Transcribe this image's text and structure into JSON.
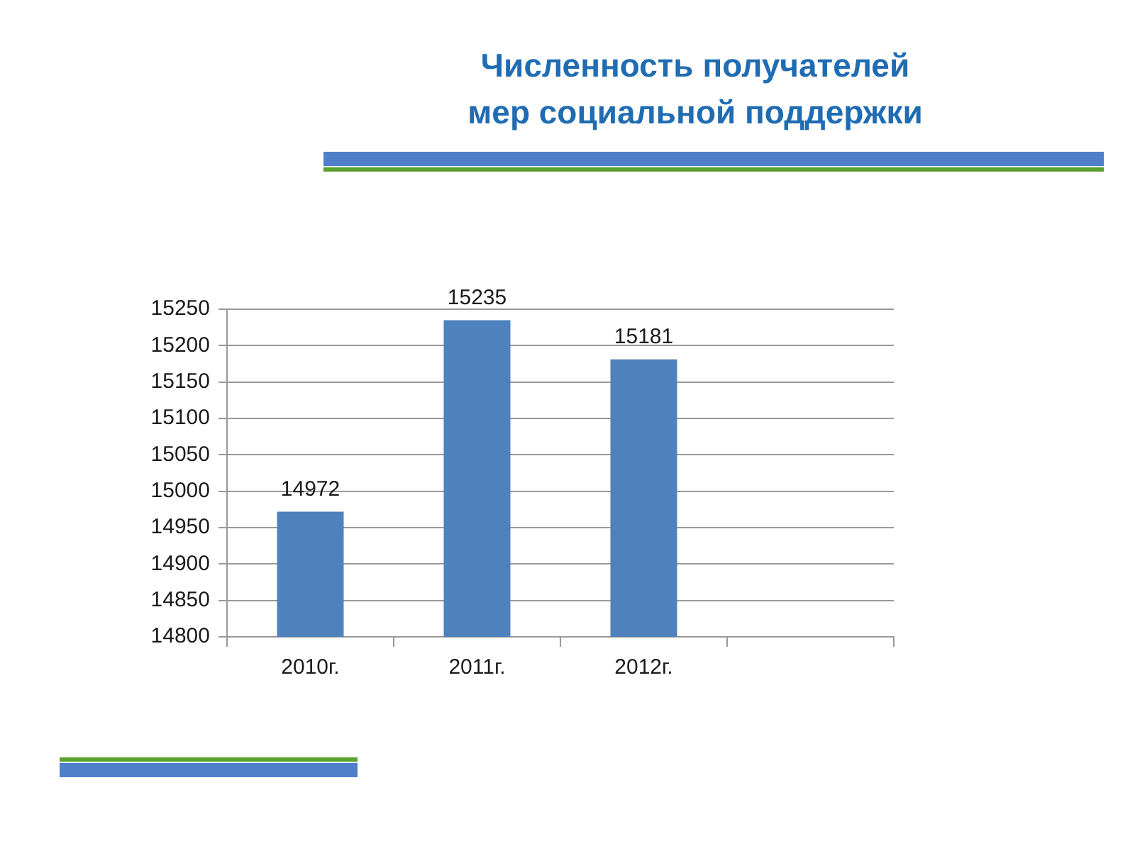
{
  "chart_data": {
    "type": "bar",
    "title": "Численность получателей\nмер социальной поддержки",
    "categories": [
      "2010г.",
      "2011г.",
      "2012г.",
      null
    ],
    "values": [
      14972,
      15235,
      15181,
      null
    ],
    "color": "#4f81bd",
    "ylim": [
      14800,
      15250
    ],
    "yticks": [
      14800,
      14850,
      14900,
      14950,
      15000,
      15050,
      15100,
      15150,
      15200,
      15250
    ],
    "grid": "y",
    "data_labels": true
  }
}
